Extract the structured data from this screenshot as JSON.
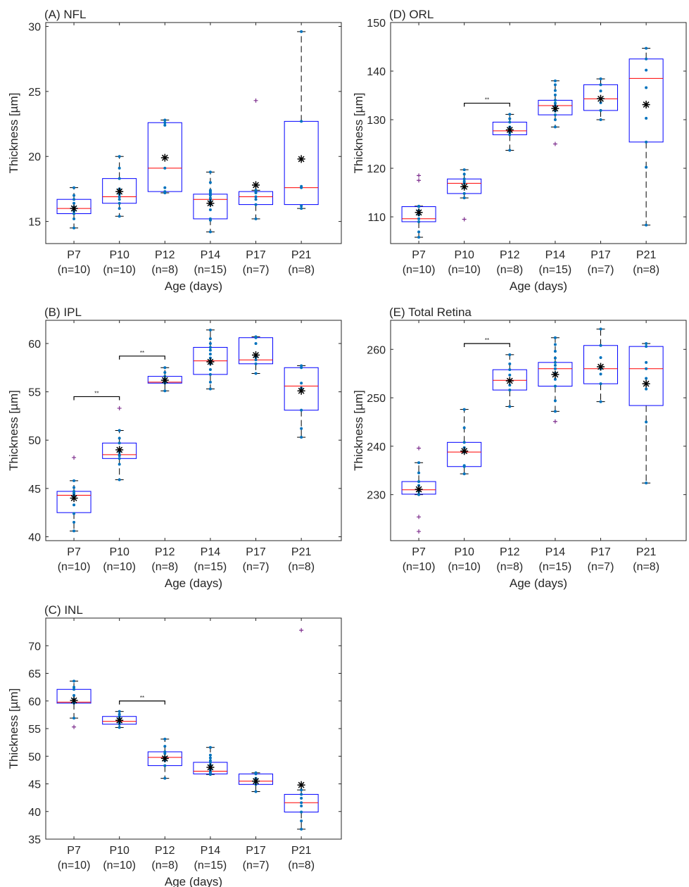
{
  "figure": {
    "xlabel": "Age (days)",
    "ylabel": "Thickness [µm]",
    "categories": [
      "P7",
      "P10",
      "P12",
      "P14",
      "P17",
      "P21"
    ],
    "counts": [
      "(n=10)",
      "(n=10)",
      "(n=8)",
      "(n=15)",
      "(n=7)",
      "(n=8)"
    ],
    "significance_label": "**"
  },
  "colors": {
    "box": "#0000ff",
    "median": "#ff0000",
    "whisker": "#000000",
    "points": "#0072bd",
    "outlier": "#7e2f8e",
    "mean": "#000000",
    "axes": "#262626"
  },
  "chart_data": [
    {
      "id": "A",
      "type": "box",
      "title": "(A) NFL",
      "xlabel": "Age (days)",
      "ylabel": "Thickness [µm]",
      "ylim": [
        13.3,
        30.3
      ],
      "yticks": [
        15,
        20,
        25,
        30
      ],
      "significance": [],
      "boxes": [
        {
          "category": "P7",
          "q1": 15.6,
          "median": 16.0,
          "q3": 16.7,
          "whisker_low": 14.5,
          "whisker_high": 17.6,
          "mean": 16.0,
          "outliers": [],
          "points": [
            14.5,
            15.2,
            15.6,
            15.8,
            16.0,
            16.1,
            16.4,
            16.7,
            17.0,
            17.6
          ]
        },
        {
          "category": "P10",
          "q1": 16.4,
          "median": 16.9,
          "q3": 18.3,
          "whisker_low": 15.4,
          "whisker_high": 20.0,
          "mean": 17.3,
          "outliers": [],
          "points": [
            15.4,
            16.0,
            16.4,
            16.7,
            16.9,
            17.1,
            17.5,
            18.3,
            19.1,
            20.0
          ]
        },
        {
          "category": "P12",
          "q1": 17.3,
          "median": 19.1,
          "q3": 22.6,
          "whisker_low": 17.2,
          "whisker_high": 22.8,
          "mean": 19.9,
          "outliers": [],
          "points": [
            17.2,
            17.3,
            17.6,
            19.1,
            19.9,
            22.4,
            22.6,
            22.8
          ]
        },
        {
          "category": "P14",
          "q1": 15.2,
          "median": 16.7,
          "q3": 17.1,
          "whisker_low": 14.2,
          "whisker_high": 18.8,
          "mean": 16.4,
          "outliers": [],
          "points": [
            14.2,
            15.1,
            15.2,
            15.9,
            16.3,
            16.5,
            16.7,
            16.8,
            17.0,
            17.1,
            17.2,
            17.3,
            17.4,
            18.0,
            18.8
          ]
        },
        {
          "category": "P17",
          "q1": 16.3,
          "median": 16.9,
          "q3": 17.3,
          "whisker_low": 15.2,
          "whisker_high": 17.4,
          "mean": 17.8,
          "outliers": [
            24.3
          ],
          "points": [
            15.2,
            16.3,
            16.7,
            16.9,
            17.2,
            17.3,
            17.4
          ]
        },
        {
          "category": "P21",
          "q1": 16.3,
          "median": 17.6,
          "q3": 22.7,
          "whisker_low": 16.0,
          "whisker_high": 29.6,
          "mean": 19.8,
          "outliers": [],
          "points": [
            16.0,
            16.2,
            17.6,
            17.7,
            22.7,
            29.6
          ]
        }
      ]
    },
    {
      "id": "B",
      "type": "box",
      "title": "(B) IPL",
      "xlabel": "Age (days)",
      "ylabel": "Thickness [µm]",
      "ylim": [
        39.6,
        62.4
      ],
      "yticks": [
        40,
        45,
        50,
        55,
        60
      ],
      "significance": [
        {
          "from": "P7",
          "to": "P10",
          "y": 54.5
        },
        {
          "from": "P10",
          "to": "P12",
          "y": 58.7
        }
      ],
      "boxes": [
        {
          "category": "P7",
          "q1": 42.5,
          "median": 44.3,
          "q3": 44.7,
          "whisker_low": 40.6,
          "whisker_high": 45.8,
          "mean": 44.0,
          "outliers": [
            48.2
          ],
          "points": [
            40.6,
            41.5,
            42.4,
            43.3,
            44.3,
            44.5,
            44.7,
            45.1,
            45.8
          ]
        },
        {
          "category": "P10",
          "q1": 48.1,
          "median": 48.5,
          "q3": 49.7,
          "whisker_low": 45.9,
          "whisker_high": 51.0,
          "mean": 49.0,
          "outliers": [
            53.3
          ],
          "points": [
            45.9,
            47.5,
            48.1,
            48.4,
            48.5,
            48.8,
            49.7,
            50.2,
            51.0
          ]
        },
        {
          "category": "P12",
          "q1": 55.9,
          "median": 56.0,
          "q3": 56.6,
          "whisker_low": 55.1,
          "whisker_high": 57.5,
          "mean": 56.2,
          "outliers": [],
          "points": [
            55.1,
            55.9,
            56.0,
            56.1,
            56.3,
            56.6,
            57.0,
            57.5
          ]
        },
        {
          "category": "P14",
          "q1": 56.8,
          "median": 58.2,
          "q3": 59.6,
          "whisker_low": 55.3,
          "whisker_high": 61.4,
          "mean": 58.1,
          "outliers": [],
          "points": [
            55.3,
            56.0,
            56.8,
            57.3,
            57.9,
            58.2,
            58.5,
            58.9,
            59.3,
            59.6,
            60.0,
            60.5,
            61.4
          ]
        },
        {
          "category": "P17",
          "q1": 57.9,
          "median": 58.3,
          "q3": 60.6,
          "whisker_low": 56.9,
          "whisker_high": 60.7,
          "mean": 58.8,
          "outliers": [],
          "points": [
            56.9,
            57.9,
            58.3,
            58.6,
            60.0,
            60.6,
            60.7
          ]
        },
        {
          "category": "P21",
          "q1": 53.1,
          "median": 55.6,
          "q3": 57.5,
          "whisker_low": 50.3,
          "whisker_high": 57.7,
          "mean": 55.1,
          "outliers": [],
          "points": [
            50.3,
            51.2,
            53.1,
            55.4,
            55.9,
            57.5,
            57.7
          ]
        }
      ]
    },
    {
      "id": "C",
      "type": "box",
      "title": "(C) INL",
      "xlabel": "Age (days)",
      "ylabel": "Thickness [µm]",
      "ylim": [
        35,
        75
      ],
      "yticks": [
        35,
        40,
        45,
        50,
        55,
        60,
        65,
        70
      ],
      "significance": [
        {
          "from": "P10",
          "to": "P12",
          "y": 60.0
        }
      ],
      "boxes": [
        {
          "category": "P7",
          "q1": 59.6,
          "median": 59.8,
          "q3": 62.1,
          "whisker_low": 56.9,
          "whisker_high": 63.6,
          "mean": 60.1,
          "outliers": [
            55.3
          ],
          "points": [
            56.9,
            59.6,
            59.8,
            60.3,
            61.0,
            62.1,
            62.5,
            63.6
          ]
        },
        {
          "category": "P10",
          "q1": 55.8,
          "median": 56.3,
          "q3": 57.2,
          "whisker_low": 55.2,
          "whisker_high": 58.1,
          "mean": 56.5,
          "outliers": [],
          "points": [
            55.2,
            55.8,
            56.1,
            56.3,
            56.8,
            57.2,
            57.6,
            58.1
          ]
        },
        {
          "category": "P12",
          "q1": 48.3,
          "median": 49.8,
          "q3": 50.8,
          "whisker_low": 46.0,
          "whisker_high": 53.1,
          "mean": 49.6,
          "outliers": [],
          "points": [
            46.0,
            48.3,
            49.2,
            49.8,
            50.5,
            50.8,
            51.8,
            53.1
          ]
        },
        {
          "category": "P14",
          "q1": 46.8,
          "median": 47.3,
          "q3": 48.9,
          "whisker_low": 46.7,
          "whisker_high": 51.6,
          "mean": 48.0,
          "outliers": [],
          "points": [
            46.7,
            46.8,
            47.0,
            47.3,
            47.6,
            48.0,
            48.4,
            48.9,
            49.2,
            49.7,
            50.2,
            51.6
          ]
        },
        {
          "category": "P17",
          "q1": 44.9,
          "median": 45.5,
          "q3": 46.8,
          "whisker_low": 43.6,
          "whisker_high": 47.0,
          "mean": 45.5,
          "outliers": [],
          "points": [
            43.6,
            44.9,
            45.3,
            45.5,
            46.0,
            46.8,
            47.0
          ]
        },
        {
          "category": "P21",
          "q1": 39.9,
          "median": 41.6,
          "q3": 43.1,
          "whisker_low": 36.8,
          "whisker_high": 43.9,
          "mean": 44.8,
          "outliers": [
            72.8
          ],
          "points": [
            36.8,
            38.3,
            39.9,
            41.0,
            41.6,
            42.4,
            43.1,
            43.9
          ]
        }
      ]
    },
    {
      "id": "D",
      "type": "box",
      "title": "(D) ORL",
      "xlabel": "Age (days)",
      "ylabel": "Thickness [µm]",
      "ylim": [
        104.5,
        150
      ],
      "yticks": [
        110,
        120,
        130,
        140,
        150
      ],
      "significance": [
        {
          "from": "P10",
          "to": "P12",
          "y": 133.4
        }
      ],
      "boxes": [
        {
          "category": "P7",
          "q1": 109.0,
          "median": 109.6,
          "q3": 112.1,
          "whisker_low": 105.8,
          "whisker_high": 112.2,
          "mean": 110.9,
          "outliers": [
            117.5,
            118.5
          ],
          "points": [
            105.8,
            106.9,
            109.0,
            109.6,
            110.4,
            111.3,
            112.1,
            112.2
          ]
        },
        {
          "category": "P10",
          "q1": 114.8,
          "median": 116.9,
          "q3": 117.8,
          "whisker_low": 113.9,
          "whisker_high": 119.7,
          "mean": 116.2,
          "outliers": [
            109.5
          ],
          "points": [
            113.9,
            114.8,
            116.0,
            116.9,
            117.3,
            117.8,
            118.8,
            119.7
          ]
        },
        {
          "category": "P12",
          "q1": 126.9,
          "median": 127.7,
          "q3": 129.5,
          "whisker_low": 123.7,
          "whisker_high": 131.1,
          "mean": 127.9,
          "outliers": [],
          "points": [
            123.7,
            126.9,
            127.4,
            127.7,
            128.5,
            129.5,
            130.2,
            131.1
          ]
        },
        {
          "category": "P14",
          "q1": 131.0,
          "median": 132.9,
          "q3": 134.0,
          "whisker_low": 128.5,
          "whisker_high": 138.0,
          "mean": 132.3,
          "outliers": [
            125.0
          ],
          "points": [
            128.5,
            130.0,
            131.0,
            131.8,
            132.3,
            132.9,
            133.4,
            134.0,
            135.1,
            136.0,
            137.2,
            138.0
          ]
        },
        {
          "category": "P17",
          "q1": 131.9,
          "median": 134.3,
          "q3": 137.2,
          "whisker_low": 130.0,
          "whisker_high": 138.4,
          "mean": 134.3,
          "outliers": [],
          "points": [
            130.0,
            131.9,
            133.5,
            134.3,
            135.9,
            137.2,
            138.4
          ]
        },
        {
          "category": "P21",
          "q1": 125.4,
          "median": 138.5,
          "q3": 142.5,
          "whisker_low": 108.3,
          "whisker_high": 144.7,
          "mean": 133.1,
          "outliers": [],
          "points": [
            108.3,
            120.2,
            125.4,
            130.3,
            136.6,
            140.2,
            142.5,
            144.7
          ]
        }
      ]
    },
    {
      "id": "E",
      "type": "box",
      "title": "(E) Total Retina",
      "xlabel": "Age (days)",
      "ylabel": "Thickness [µm]",
      "ylim": [
        220.5,
        266
      ],
      "yticks": [
        230,
        240,
        250,
        260
      ],
      "significance": [
        {
          "from": "P10",
          "to": "P12",
          "y": 261.2
        }
      ],
      "boxes": [
        {
          "category": "P7",
          "q1": 230.1,
          "median": 231.0,
          "q3": 232.7,
          "whisker_low": 230.0,
          "whisker_high": 236.6,
          "mean": 231.1,
          "outliers": [
            239.6,
            225.4,
            222.4
          ],
          "points": [
            230.0,
            230.1,
            230.7,
            231.0,
            231.9,
            232.7,
            234.5,
            236.6
          ]
        },
        {
          "category": "P10",
          "q1": 235.8,
          "median": 238.8,
          "q3": 240.8,
          "whisker_low": 234.3,
          "whisker_high": 247.6,
          "mean": 239.0,
          "outliers": [],
          "points": [
            234.3,
            235.8,
            236.0,
            238.8,
            239.7,
            240.8,
            243.8,
            247.6
          ]
        },
        {
          "category": "P12",
          "q1": 251.6,
          "median": 253.6,
          "q3": 255.8,
          "whisker_low": 248.2,
          "whisker_high": 258.9,
          "mean": 253.5,
          "outliers": [],
          "points": [
            248.2,
            251.6,
            252.6,
            253.6,
            254.7,
            255.8,
            257.0,
            258.9
          ]
        },
        {
          "category": "P14",
          "q1": 252.4,
          "median": 256.0,
          "q3": 257.3,
          "whisker_low": 247.2,
          "whisker_high": 262.4,
          "mean": 254.8,
          "outliers": [
            245.1
          ],
          "points": [
            247.2,
            249.4,
            252.4,
            253.8,
            255.1,
            256.0,
            256.7,
            257.3,
            258.2,
            259.6,
            261.0,
            262.4
          ]
        },
        {
          "category": "P17",
          "q1": 252.9,
          "median": 256.0,
          "q3": 260.8,
          "whisker_low": 249.2,
          "whisker_high": 264.2,
          "mean": 256.4,
          "outliers": [],
          "points": [
            249.2,
            252.9,
            254.9,
            256.0,
            258.3,
            260.8,
            264.2
          ]
        },
        {
          "category": "P21",
          "q1": 248.4,
          "median": 256.0,
          "q3": 260.6,
          "whisker_low": 232.4,
          "whisker_high": 261.2,
          "mean": 252.9,
          "outliers": [],
          "points": [
            232.4,
            245.0,
            251.8,
            254.0,
            256.0,
            257.3,
            260.6,
            261.2
          ]
        }
      ]
    }
  ]
}
